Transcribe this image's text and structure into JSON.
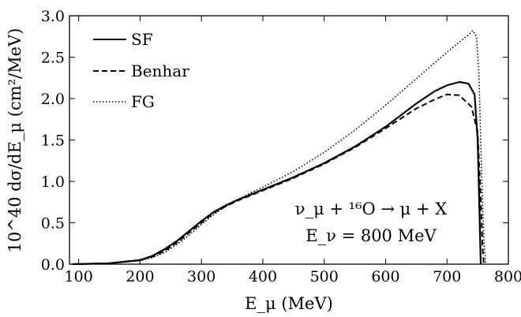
{
  "chart_data": {
    "type": "line",
    "xlabel": "E_μ (MeV)",
    "ylabel": "10^40 dσ/dE_μ (cm²/MeV)",
    "xlim": [
      85,
      800
    ],
    "ylim": [
      0.0,
      3.0
    ],
    "x_ticks": [
      "100",
      "200",
      "300",
      "400",
      "500",
      "600",
      "700",
      "800"
    ],
    "y_ticks": [
      "0.0",
      "0.5",
      "1.0",
      "1.5",
      "2.0",
      "2.5",
      "3.0"
    ],
    "legend_position": "top-left",
    "annotation_line1": "ν_μ + ¹⁶O → μ + X",
    "annotation_line2": "E_ν = 800 MeV",
    "series": [
      {
        "name": "SF",
        "style": "solid",
        "x": [
          90,
          150,
          200,
          220,
          240,
          260,
          280,
          300,
          320,
          340,
          360,
          380,
          400,
          450,
          500,
          550,
          600,
          650,
          680,
          700,
          720,
          735,
          745,
          750,
          753,
          755
        ],
        "y": [
          0.0,
          0.01,
          0.05,
          0.1,
          0.18,
          0.28,
          0.4,
          0.52,
          0.63,
          0.71,
          0.78,
          0.84,
          0.9,
          1.05,
          1.22,
          1.42,
          1.66,
          1.94,
          2.09,
          2.16,
          2.2,
          2.18,
          2.05,
          1.5,
          0.6,
          0.0
        ]
      },
      {
        "name": "Benhar",
        "style": "dashed",
        "x": [
          90,
          150,
          200,
          220,
          240,
          260,
          280,
          300,
          320,
          340,
          360,
          380,
          400,
          450,
          500,
          550,
          600,
          650,
          680,
          700,
          720,
          740,
          750,
          755,
          758,
          760
        ],
        "y": [
          0.0,
          0.01,
          0.05,
          0.09,
          0.16,
          0.26,
          0.38,
          0.5,
          0.62,
          0.7,
          0.77,
          0.83,
          0.89,
          1.04,
          1.21,
          1.41,
          1.64,
          1.88,
          1.99,
          2.05,
          2.04,
          1.9,
          1.6,
          0.8,
          0.2,
          0.0
        ]
      },
      {
        "name": "FG",
        "style": "dotted",
        "x": [
          90,
          150,
          200,
          220,
          240,
          260,
          280,
          300,
          320,
          340,
          360,
          380,
          400,
          450,
          500,
          550,
          600,
          650,
          700,
          720,
          735,
          742,
          748,
          752,
          756,
          760,
          763
        ],
        "y": [
          0.0,
          0.01,
          0.04,
          0.08,
          0.14,
          0.24,
          0.35,
          0.48,
          0.6,
          0.7,
          0.78,
          0.86,
          0.93,
          1.12,
          1.35,
          1.62,
          1.92,
          2.24,
          2.56,
          2.68,
          2.77,
          2.82,
          2.75,
          2.3,
          1.2,
          0.3,
          0.0
        ]
      }
    ]
  }
}
